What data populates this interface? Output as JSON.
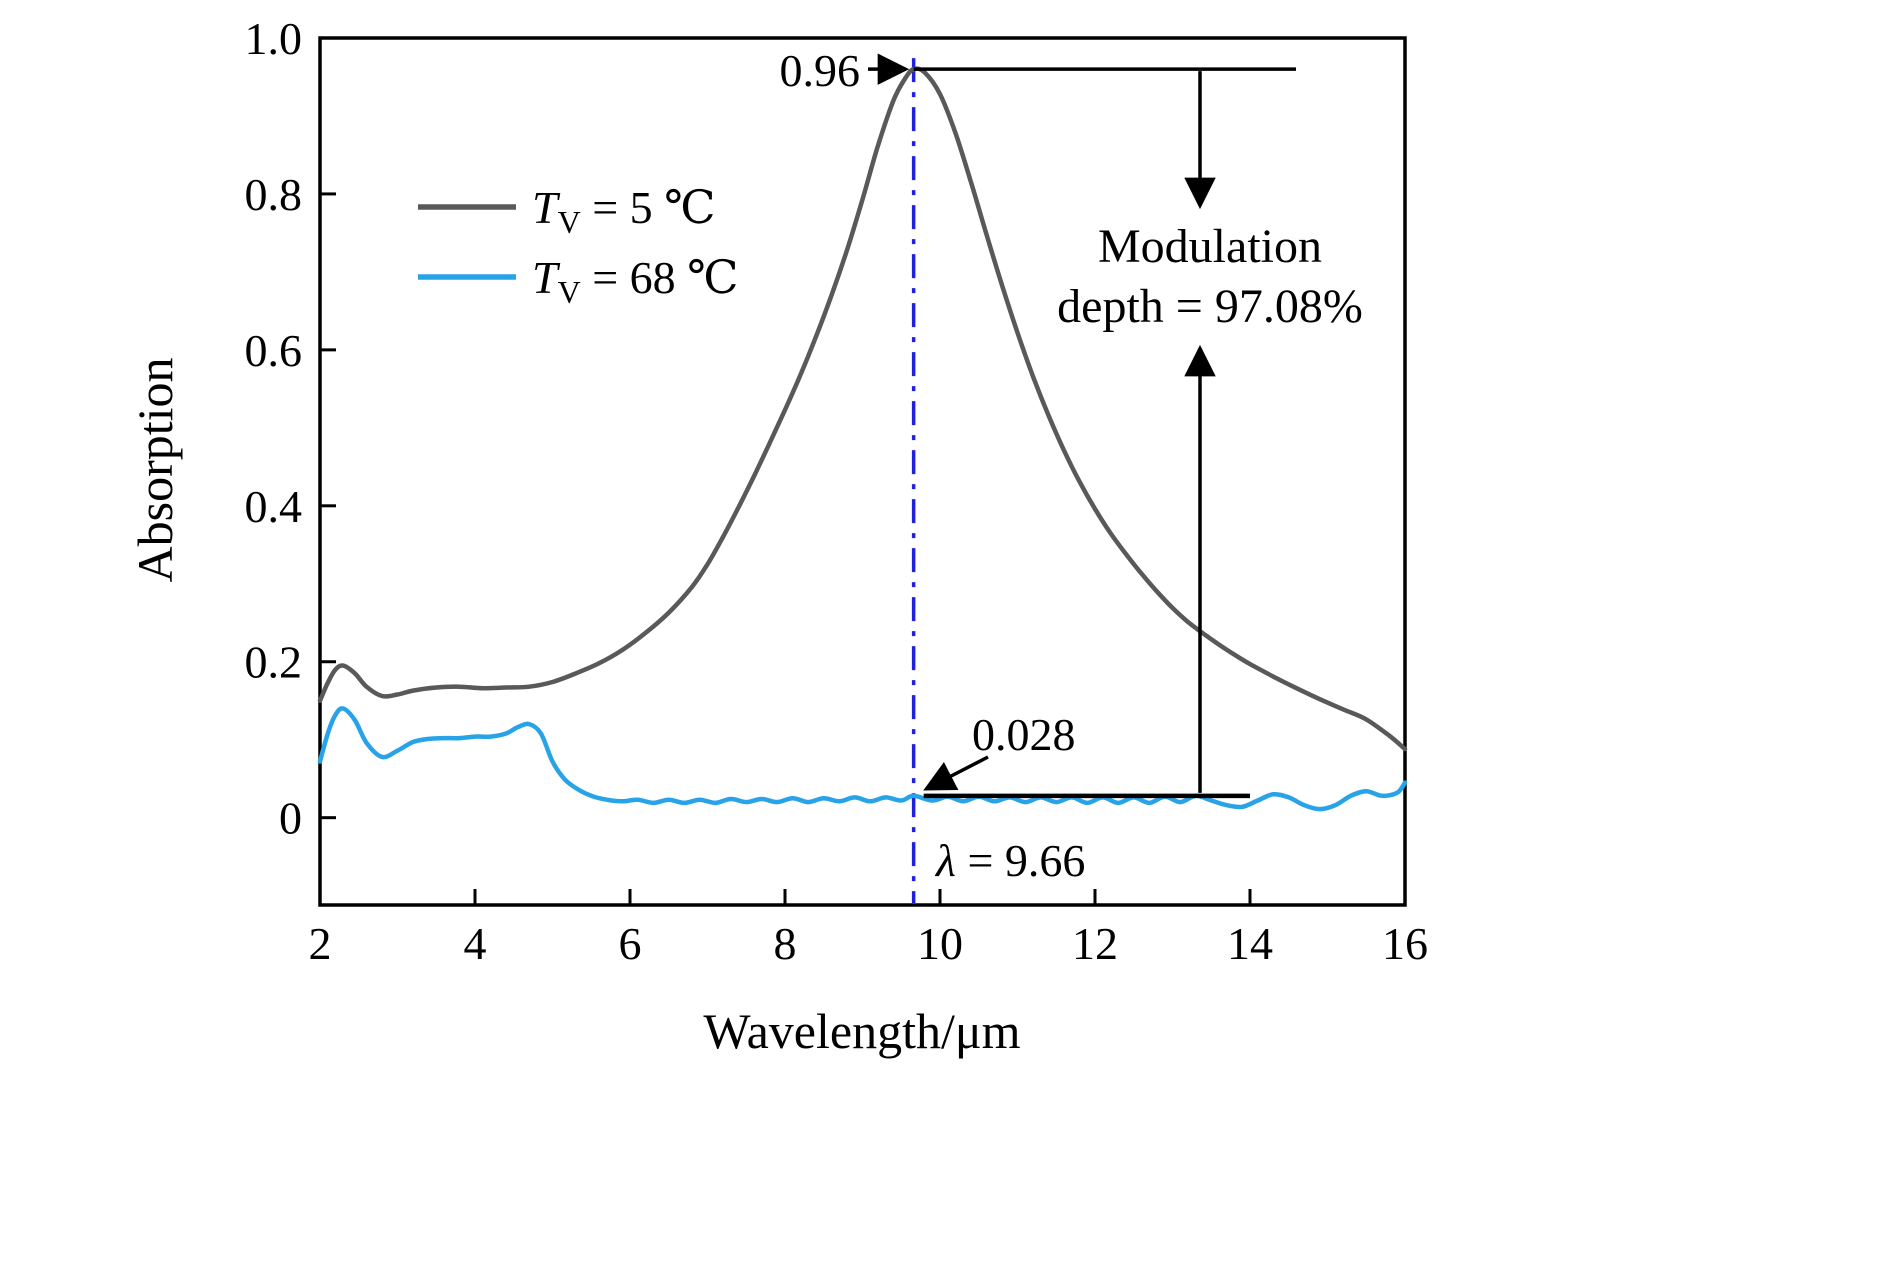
{
  "figure": {
    "background": "#ffffff"
  },
  "legend": {
    "items": [
      {
        "var": "T",
        "sub": "V",
        "rest": " = 5 ℃",
        "color": "#595959"
      },
      {
        "var": "T",
        "sub": "V",
        "rest": " = 68 ℃",
        "color": "#29a3e8"
      }
    ]
  },
  "annotations": {
    "peak_value_label": "0.96",
    "low_value_label": "0.028",
    "lambda_symbol": "λ",
    "lambda_rest": " = 9.66",
    "modulation_line1": "Modulation",
    "modulation_line2": "depth = 97.08%"
  },
  "chart_data": {
    "type": "line",
    "title": "",
    "xlabel": "Wavelength/μm",
    "ylabel": "Absorption",
    "xlim": [
      2,
      16
    ],
    "ylim": [
      -0.112,
      1.0
    ],
    "xticks": [
      2,
      4,
      6,
      8,
      10,
      12,
      14,
      16
    ],
    "xtick_labels": [
      "2",
      "4",
      "6",
      "8",
      "10",
      "12",
      "14",
      "16"
    ],
    "yticks": [
      0,
      0.2,
      0.4,
      0.6,
      0.8,
      1.0
    ],
    "ytick_labels": [
      "0",
      "0.2",
      "0.4",
      "0.6",
      "0.8",
      "1.0"
    ],
    "grid": false,
    "legend_position": "upper-left",
    "series": [
      {
        "name": "TV = 5 ℃",
        "color": "#595959",
        "points": [
          [
            2.0,
            0.15
          ],
          [
            2.1,
            0.173
          ],
          [
            2.2,
            0.19
          ],
          [
            2.3,
            0.195
          ],
          [
            2.45,
            0.185
          ],
          [
            2.6,
            0.168
          ],
          [
            2.8,
            0.156
          ],
          [
            3.0,
            0.158
          ],
          [
            3.2,
            0.163
          ],
          [
            3.5,
            0.167
          ],
          [
            3.8,
            0.168
          ],
          [
            4.1,
            0.166
          ],
          [
            4.4,
            0.167
          ],
          [
            4.7,
            0.168
          ],
          [
            5.0,
            0.174
          ],
          [
            5.3,
            0.185
          ],
          [
            5.6,
            0.198
          ],
          [
            5.9,
            0.215
          ],
          [
            6.2,
            0.237
          ],
          [
            6.5,
            0.263
          ],
          [
            6.8,
            0.296
          ],
          [
            7.0,
            0.325
          ],
          [
            7.2,
            0.36
          ],
          [
            7.4,
            0.398
          ],
          [
            7.6,
            0.438
          ],
          [
            7.8,
            0.48
          ],
          [
            8.0,
            0.523
          ],
          [
            8.2,
            0.568
          ],
          [
            8.4,
            0.617
          ],
          [
            8.6,
            0.67
          ],
          [
            8.8,
            0.728
          ],
          [
            9.0,
            0.793
          ],
          [
            9.2,
            0.862
          ],
          [
            9.4,
            0.92
          ],
          [
            9.55,
            0.948
          ],
          [
            9.66,
            0.96
          ],
          [
            9.8,
            0.956
          ],
          [
            10.0,
            0.928
          ],
          [
            10.2,
            0.878
          ],
          [
            10.4,
            0.815
          ],
          [
            10.6,
            0.748
          ],
          [
            10.8,
            0.683
          ],
          [
            11.0,
            0.622
          ],
          [
            11.2,
            0.566
          ],
          [
            11.4,
            0.516
          ],
          [
            11.6,
            0.471
          ],
          [
            11.8,
            0.431
          ],
          [
            12.0,
            0.396
          ],
          [
            12.2,
            0.365
          ],
          [
            12.4,
            0.338
          ],
          [
            12.6,
            0.313
          ],
          [
            12.8,
            0.29
          ],
          [
            13.0,
            0.269
          ],
          [
            13.2,
            0.251
          ],
          [
            13.4,
            0.236
          ],
          [
            13.6,
            0.222
          ],
          [
            13.8,
            0.209
          ],
          [
            14.0,
            0.197
          ],
          [
            14.3,
            0.181
          ],
          [
            14.6,
            0.166
          ],
          [
            14.9,
            0.152
          ],
          [
            15.2,
            0.139
          ],
          [
            15.5,
            0.126
          ],
          [
            15.8,
            0.105
          ],
          [
            16.0,
            0.088
          ]
        ]
      },
      {
        "name": "TV = 68 ℃",
        "color": "#29a3e8",
        "points": [
          [
            2.0,
            0.072
          ],
          [
            2.1,
            0.108
          ],
          [
            2.2,
            0.132
          ],
          [
            2.3,
            0.14
          ],
          [
            2.45,
            0.125
          ],
          [
            2.6,
            0.096
          ],
          [
            2.8,
            0.078
          ],
          [
            3.0,
            0.086
          ],
          [
            3.2,
            0.097
          ],
          [
            3.4,
            0.101
          ],
          [
            3.6,
            0.102
          ],
          [
            3.8,
            0.102
          ],
          [
            4.0,
            0.104
          ],
          [
            4.2,
            0.104
          ],
          [
            4.4,
            0.108
          ],
          [
            4.55,
            0.116
          ],
          [
            4.7,
            0.12
          ],
          [
            4.85,
            0.108
          ],
          [
            5.0,
            0.072
          ],
          [
            5.15,
            0.05
          ],
          [
            5.3,
            0.038
          ],
          [
            5.5,
            0.028
          ],
          [
            5.7,
            0.023
          ],
          [
            5.9,
            0.021
          ],
          [
            6.1,
            0.023
          ],
          [
            6.3,
            0.019
          ],
          [
            6.5,
            0.023
          ],
          [
            6.7,
            0.019
          ],
          [
            6.9,
            0.023
          ],
          [
            7.1,
            0.019
          ],
          [
            7.3,
            0.024
          ],
          [
            7.5,
            0.02
          ],
          [
            7.7,
            0.024
          ],
          [
            7.9,
            0.02
          ],
          [
            8.1,
            0.025
          ],
          [
            8.3,
            0.02
          ],
          [
            8.5,
            0.025
          ],
          [
            8.7,
            0.021
          ],
          [
            8.9,
            0.026
          ],
          [
            9.1,
            0.021
          ],
          [
            9.3,
            0.026
          ],
          [
            9.5,
            0.022
          ],
          [
            9.66,
            0.028
          ],
          [
            9.9,
            0.022
          ],
          [
            10.1,
            0.027
          ],
          [
            10.3,
            0.021
          ],
          [
            10.5,
            0.027
          ],
          [
            10.7,
            0.021
          ],
          [
            10.9,
            0.026
          ],
          [
            11.1,
            0.02
          ],
          [
            11.3,
            0.026
          ],
          [
            11.5,
            0.02
          ],
          [
            11.7,
            0.026
          ],
          [
            11.9,
            0.019
          ],
          [
            12.1,
            0.026
          ],
          [
            12.3,
            0.019
          ],
          [
            12.5,
            0.026
          ],
          [
            12.7,
            0.019
          ],
          [
            12.9,
            0.027
          ],
          [
            13.1,
            0.02
          ],
          [
            13.3,
            0.028
          ],
          [
            13.5,
            0.022
          ],
          [
            13.7,
            0.016
          ],
          [
            13.9,
            0.014
          ],
          [
            14.1,
            0.022
          ],
          [
            14.3,
            0.03
          ],
          [
            14.5,
            0.026
          ],
          [
            14.7,
            0.016
          ],
          [
            14.9,
            0.011
          ],
          [
            15.1,
            0.016
          ],
          [
            15.3,
            0.028
          ],
          [
            15.5,
            0.034
          ],
          [
            15.7,
            0.028
          ],
          [
            15.9,
            0.032
          ],
          [
            16.0,
            0.045
          ]
        ]
      }
    ],
    "markers": {
      "peak": {
        "x": 9.66,
        "y": 0.96
      },
      "low": {
        "x": 9.66,
        "y": 0.028
      },
      "modulation_depth_percent": 97.08,
      "vline_x": 9.66,
      "vline_color": "#2020e0"
    }
  }
}
